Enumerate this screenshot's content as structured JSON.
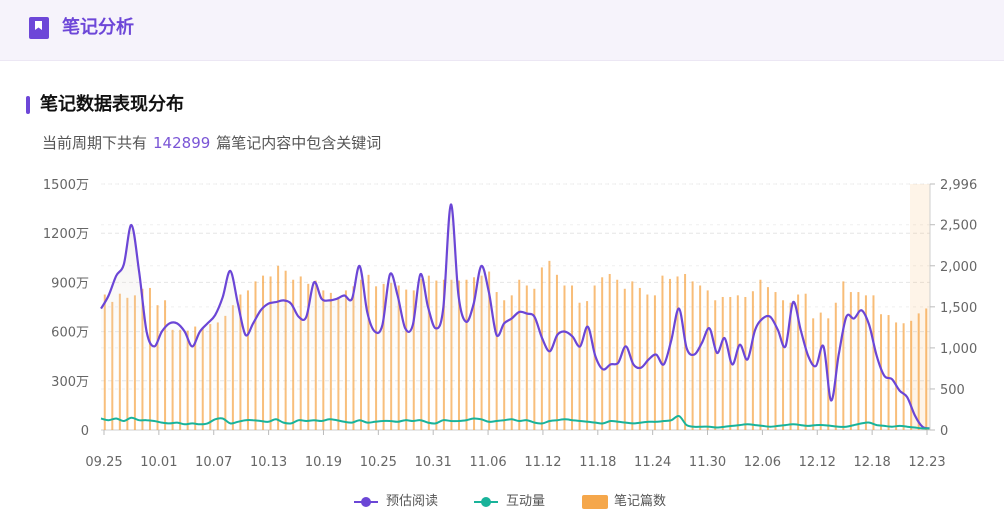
{
  "header": {
    "title": "笔记分析",
    "icon": "bookmark-icon",
    "accent": "#6d47d8"
  },
  "section": {
    "title": "笔记数据表现分布",
    "summary_prefix": "当前周期下共有",
    "summary_count": "142899",
    "summary_suffix": "篇笔记内容中包含关键词"
  },
  "chart_data": {
    "type": "bar+line",
    "x_tick_labels": [
      "09.25",
      "10.01",
      "10.07",
      "10.13",
      "10.19",
      "10.25",
      "10.31",
      "11.06",
      "11.12",
      "11.18",
      "11.24",
      "11.30",
      "12.06",
      "12.12",
      "12.18",
      "12.23"
    ],
    "y_left": {
      "ticks": [
        "0",
        "300万",
        "600万",
        "900万",
        "1200万",
        "1500万"
      ],
      "min": 0,
      "max": 1500
    },
    "y_right": {
      "ticks": [
        "0",
        "500",
        "1,000",
        "1,500",
        "2,000",
        "2,500",
        "2,996"
      ],
      "min": 0,
      "max": 2996
    },
    "legend": [
      {
        "name": "预估阅读",
        "color": "#6b46d6",
        "kind": "line"
      },
      {
        "name": "互动量",
        "color": "#19b39a",
        "kind": "line"
      },
      {
        "name": "笔记篇数",
        "color": "#f5a74b",
        "kind": "bar"
      }
    ],
    "series": [
      {
        "name": "预估阅读",
        "axis": "left",
        "color": "#6b46d6",
        "values": [
          740,
          820,
          940,
          1010,
          1250,
          970,
          600,
          510,
          600,
          650,
          650,
          600,
          510,
          600,
          650,
          700,
          810,
          970,
          770,
          580,
          650,
          730,
          770,
          780,
          790,
          770,
          690,
          690,
          900,
          800,
          790,
          800,
          820,
          800,
          1000,
          720,
          600,
          640,
          950,
          820,
          620,
          640,
          950,
          750,
          620,
          740,
          1375,
          820,
          660,
          770,
          1000,
          840,
          580,
          650,
          680,
          720,
          710,
          690,
          560,
          480,
          580,
          600,
          570,
          510,
          630,
          450,
          370,
          400,
          410,
          510,
          400,
          380,
          430,
          460,
          400,
          550,
          740,
          500,
          460,
          530,
          620,
          470,
          560,
          400,
          520,
          430,
          610,
          680,
          690,
          610,
          510,
          780,
          610,
          450,
          390,
          510,
          180,
          460,
          690,
          680,
          730,
          640,
          450,
          330,
          310,
          240,
          200,
          90,
          20,
          10
        ]
      },
      {
        "name": "互动量",
        "axis": "left",
        "color": "#19b39a",
        "values": [
          70,
          60,
          70,
          55,
          75,
          60,
          60,
          55,
          45,
          40,
          45,
          35,
          40,
          35,
          40,
          65,
          70,
          40,
          50,
          60,
          60,
          55,
          50,
          65,
          45,
          40,
          60,
          55,
          60,
          55,
          65,
          60,
          50,
          45,
          60,
          45,
          50,
          55,
          55,
          50,
          60,
          55,
          60,
          45,
          40,
          60,
          55,
          55,
          60,
          70,
          65,
          50,
          55,
          60,
          65,
          55,
          60,
          45,
          40,
          55,
          60,
          65,
          60,
          55,
          50,
          45,
          40,
          55,
          50,
          45,
          40,
          45,
          50,
          50,
          55,
          60,
          85,
          30,
          20,
          20,
          20,
          15,
          20,
          25,
          30,
          35,
          30,
          25,
          20,
          25,
          30,
          35,
          30,
          25,
          30,
          30,
          25,
          20,
          20,
          30,
          40,
          45,
          30,
          25,
          20,
          25,
          20,
          15,
          10,
          10
        ]
      },
      {
        "name": "笔记篇数",
        "axis": "right",
        "color": "#f5a74b",
        "values": [
          1650,
          1560,
          1660,
          1610,
          1640,
          1720,
          1730,
          1520,
          1580,
          1220,
          1220,
          1210,
          1260,
          1250,
          1290,
          1310,
          1390,
          1520,
          1650,
          1700,
          1810,
          1880,
          1870,
          2000,
          1940,
          1830,
          1870,
          1780,
          1820,
          1700,
          1670,
          1620,
          1700,
          1750,
          1830,
          1890,
          1750,
          1780,
          1790,
          1760,
          1710,
          1700,
          1840,
          1880,
          1820,
          1830,
          1830,
          1820,
          1830,
          1860,
          1880,
          1930,
          1680,
          1580,
          1640,
          1830,
          1760,
          1720,
          1980,
          2060,
          1890,
          1760,
          1760,
          1550,
          1570,
          1760,
          1860,
          1900,
          1830,
          1720,
          1810,
          1730,
          1650,
          1640,
          1880,
          1840,
          1870,
          1900,
          1810,
          1760,
          1700,
          1580,
          1620,
          1620,
          1640,
          1620,
          1690,
          1830,
          1740,
          1680,
          1580,
          1550,
          1650,
          1660,
          1360,
          1430,
          1360,
          1550,
          1810,
          1680,
          1680,
          1640,
          1640,
          1410,
          1400,
          1310,
          1300,
          1330,
          1420,
          1480
        ]
      }
    ]
  }
}
